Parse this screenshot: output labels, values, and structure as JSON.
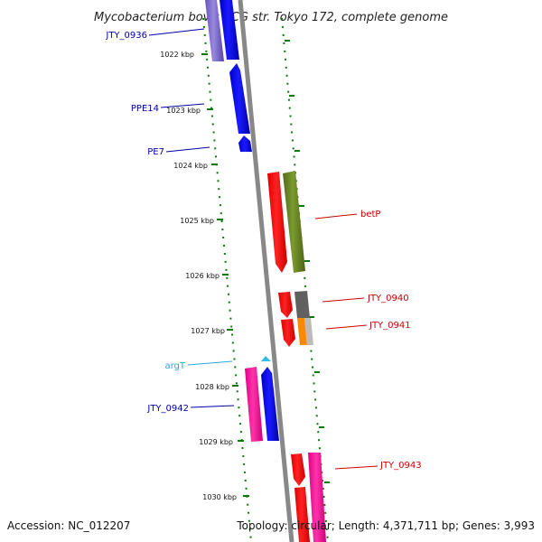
{
  "title": "Mycobacterium bovis BCG str. Tokyo 172, complete genome",
  "footer": {
    "accession": "Accession: NC_012207",
    "topology": "Topology: circular; Length: 4,371,711 bp; Genes: 3,993"
  },
  "ticks": [
    "1022 kbp",
    "1023 kbp",
    "1024 kbp",
    "1025 kbp",
    "1026 kbp",
    "1027 kbp",
    "1028 kbp",
    "1029 kbp",
    "1030 kbp"
  ],
  "gene_labels": [
    {
      "text": "JTY_0936",
      "color": "#0000aa"
    },
    {
      "text": "PPE14",
      "color": "#0000aa"
    },
    {
      "text": "PE7",
      "color": "#0000aa"
    },
    {
      "text": "betP",
      "color": "#cc0000"
    },
    {
      "text": "JTY_0940",
      "color": "#cc0000"
    },
    {
      "text": "JTY_0941",
      "color": "#cc0000"
    },
    {
      "text": "argT",
      "color": "#22aadd"
    },
    {
      "text": "JTY_0942",
      "color": "#0000aa"
    },
    {
      "text": "JTY_0943",
      "color": "#cc0000"
    }
  ],
  "colors": {
    "backbone": "#888888",
    "tick_marks": "#0a7a0a",
    "forward_blue": "#0000ee",
    "reverse_red": "#ee0000",
    "olive": "#6b8e23",
    "magenta": "#ee1199",
    "gray_gene": "#606060",
    "orange_gene": "#ff8800",
    "lavender_gene": "#7766cc",
    "cyan_gene": "#33bbee"
  }
}
